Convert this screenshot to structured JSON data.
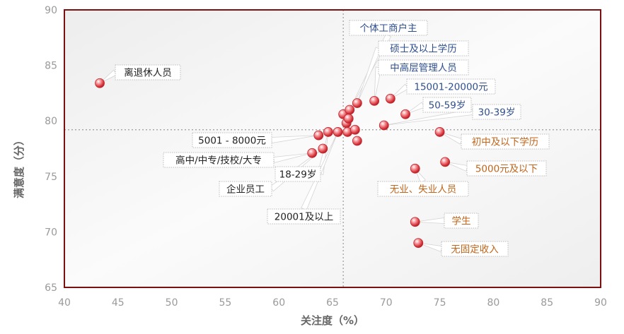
{
  "chart_data": {
    "type": "scatter",
    "xlabel": "关注度（%）",
    "ylabel": "满意度（分）",
    "xlim": [
      40,
      90
    ],
    "ylim": [
      65,
      90
    ],
    "xticks": [
      40,
      45,
      50,
      55,
      60,
      65,
      70,
      75,
      80,
      85,
      90
    ],
    "yticks": [
      65,
      70,
      75,
      80,
      85,
      90
    ],
    "reference_lines": {
      "x": 66,
      "y": 79.2
    },
    "grid": false,
    "colors": {
      "plot_border": "#7a1010",
      "marker": "#d9363e",
      "label_blue": "#2f4f8f",
      "label_orange": "#c0651a",
      "label_black": "#222222",
      "reference_line": "#9a9a9a"
    },
    "labeled_points": [
      {
        "label": "离退休人员",
        "x": 43.3,
        "y": 83.4,
        "color": "black"
      },
      {
        "label": "个体工商户主",
        "x": 66.6,
        "y": 81.0,
        "color": "blue"
      },
      {
        "label": "硕士及以上学历",
        "x": 67.3,
        "y": 81.6,
        "color": "blue"
      },
      {
        "label": "中高层管理人员",
        "x": 68.9,
        "y": 81.8,
        "color": "blue"
      },
      {
        "label": "15001-20000元",
        "x": 70.4,
        "y": 82.0,
        "color": "blue"
      },
      {
        "label": "50-59岁",
        "x": 71.8,
        "y": 80.6,
        "color": "blue"
      },
      {
        "label": "30-39岁",
        "x": 69.8,
        "y": 79.6,
        "color": "blue"
      },
      {
        "label": "5001 - 8000元",
        "x": 63.7,
        "y": 78.7,
        "color": "black"
      },
      {
        "label": "高中/中专/技校/大专",
        "x": 63.1,
        "y": 77.1,
        "color": "black"
      },
      {
        "label": "18-29岁",
        "x": 64.6,
        "y": 79.0,
        "color": "black"
      },
      {
        "label": "企业员工",
        "x": 64.1,
        "y": 77.5,
        "color": "black"
      },
      {
        "label": "20001及以上",
        "x": 65.5,
        "y": 79.0,
        "color": "black"
      },
      {
        "label": "初中及以下学历",
        "x": 75.0,
        "y": 79.0,
        "color": "orange"
      },
      {
        "label": "5000元及以下",
        "x": 75.5,
        "y": 76.3,
        "color": "orange"
      },
      {
        "label": "无业、失业人员",
        "x": 72.7,
        "y": 75.7,
        "color": "orange"
      },
      {
        "label": "学生",
        "x": 72.7,
        "y": 70.9,
        "color": "orange"
      },
      {
        "label": "无固定收入",
        "x": 73.0,
        "y": 69.0,
        "color": "orange"
      }
    ],
    "unlabeled_points": [
      {
        "x": 66.0,
        "y": 80.6
      },
      {
        "x": 66.3,
        "y": 79.8
      },
      {
        "x": 66.5,
        "y": 80.2
      },
      {
        "x": 66.4,
        "y": 79.0
      },
      {
        "x": 67.1,
        "y": 79.2
      },
      {
        "x": 67.3,
        "y": 78.2
      }
    ]
  }
}
